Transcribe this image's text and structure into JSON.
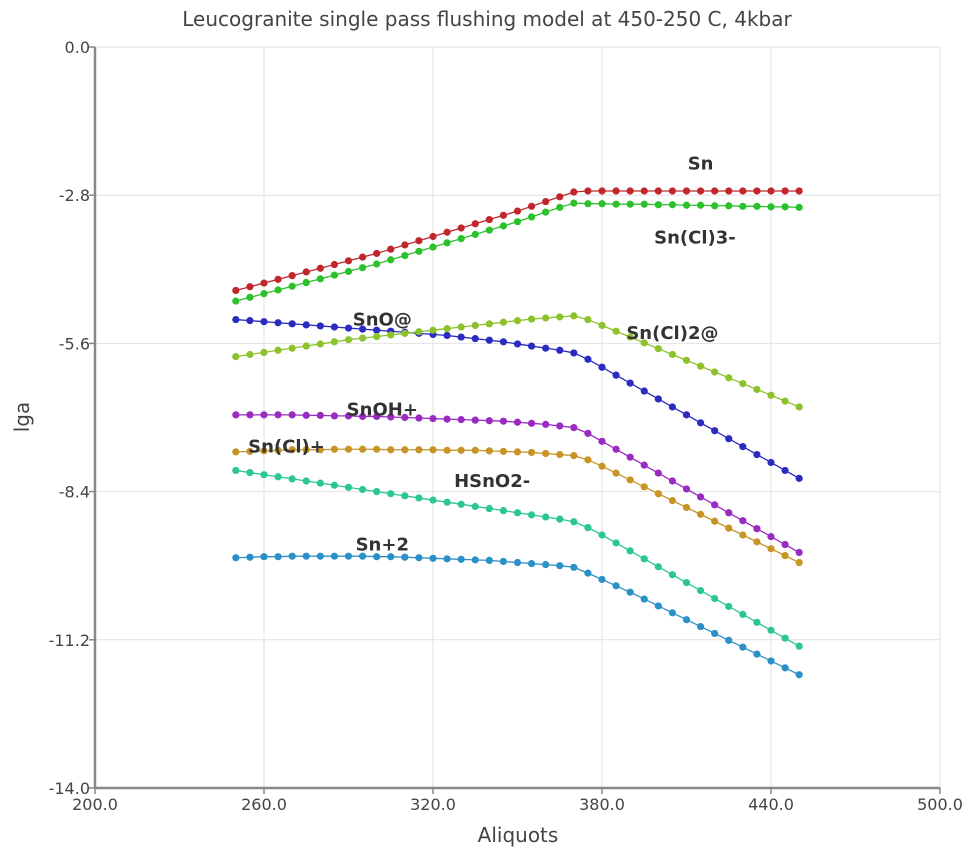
{
  "chart_data": {
    "type": "line",
    "title": "Leucogranite single pass flushing model at 450-250 C, 4kbar",
    "xlabel": "Aliquots",
    "ylabel": "lga",
    "xlim": [
      200,
      500
    ],
    "ylim": [
      -14,
      0
    ],
    "xticks": [
      "200.0",
      "260.0",
      "320.0",
      "380.0",
      "440.0",
      "500.0"
    ],
    "yticks": [
      "0.0",
      "-2.8",
      "-5.6",
      "-8.4",
      "-11.2",
      "-14.0"
    ],
    "grid": true,
    "x": [
      250,
      255,
      260,
      265,
      270,
      275,
      280,
      285,
      290,
      295,
      300,
      305,
      310,
      315,
      320,
      325,
      330,
      335,
      340,
      345,
      350,
      355,
      360,
      365,
      370,
      375,
      380,
      385,
      390,
      395,
      400,
      405,
      410,
      415,
      420,
      425,
      430,
      435,
      440,
      445,
      450
    ],
    "series": [
      {
        "name": "Sn",
        "color": "#c0272d",
        "label_pos": [
          415,
          -2.2
        ],
        "values": [
          -4.6,
          -4.53,
          -4.46,
          -4.39,
          -4.32,
          -4.25,
          -4.18,
          -4.11,
          -4.04,
          -3.97,
          -3.9,
          -3.82,
          -3.74,
          -3.66,
          -3.58,
          -3.5,
          -3.42,
          -3.34,
          -3.26,
          -3.18,
          -3.1,
          -3.01,
          -2.92,
          -2.83,
          -2.74,
          -2.72,
          -2.72,
          -2.72,
          -2.72,
          -2.72,
          -2.72,
          -2.72,
          -2.72,
          -2.72,
          -2.72,
          -2.72,
          -2.72,
          -2.72,
          -2.72,
          -2.72,
          -2.72
        ]
      },
      {
        "name": "Sn(Cl)3-",
        "color": "#2bc12b",
        "label_pos": [
          413,
          -3.6
        ],
        "values": [
          -4.8,
          -4.73,
          -4.66,
          -4.59,
          -4.52,
          -4.45,
          -4.38,
          -4.31,
          -4.24,
          -4.17,
          -4.1,
          -4.02,
          -3.94,
          -3.86,
          -3.78,
          -3.7,
          -3.62,
          -3.54,
          -3.46,
          -3.38,
          -3.3,
          -3.21,
          -3.12,
          -3.03,
          -2.95,
          -2.96,
          -2.96,
          -2.97,
          -2.97,
          -2.97,
          -2.98,
          -2.98,
          -2.99,
          -2.99,
          -3.0,
          -3.0,
          -3.01,
          -3.01,
          -3.02,
          -3.02,
          -3.03
        ]
      },
      {
        "name": "SnO@",
        "color": "#2b2bc0",
        "label_pos": [
          302,
          -5.15
        ],
        "values": [
          -5.15,
          -5.17,
          -5.19,
          -5.21,
          -5.23,
          -5.25,
          -5.27,
          -5.29,
          -5.31,
          -5.33,
          -5.35,
          -5.37,
          -5.39,
          -5.41,
          -5.43,
          -5.45,
          -5.48,
          -5.51,
          -5.54,
          -5.57,
          -5.61,
          -5.65,
          -5.69,
          -5.73,
          -5.78,
          -5.9,
          -6.05,
          -6.2,
          -6.35,
          -6.5,
          -6.65,
          -6.8,
          -6.95,
          -7.1,
          -7.25,
          -7.4,
          -7.55,
          -7.7,
          -7.85,
          -8.0,
          -8.15
        ]
      },
      {
        "name": "Sn(Cl)2@",
        "color": "#8cc22b",
        "label_pos": [
          405,
          -5.4
        ],
        "values": [
          -5.85,
          -5.81,
          -5.77,
          -5.73,
          -5.69,
          -5.65,
          -5.61,
          -5.57,
          -5.53,
          -5.5,
          -5.47,
          -5.44,
          -5.41,
          -5.38,
          -5.35,
          -5.32,
          -5.29,
          -5.26,
          -5.23,
          -5.2,
          -5.17,
          -5.14,
          -5.12,
          -5.1,
          -5.08,
          -5.15,
          -5.26,
          -5.37,
          -5.48,
          -5.59,
          -5.7,
          -5.81,
          -5.92,
          -6.03,
          -6.14,
          -6.25,
          -6.36,
          -6.47,
          -6.58,
          -6.69,
          -6.8
        ]
      },
      {
        "name": "SnOH+",
        "color": "#9a2bc0",
        "label_pos": [
          302,
          -6.85
        ],
        "values": [
          -6.95,
          -6.95,
          -6.95,
          -6.95,
          -6.95,
          -6.96,
          -6.96,
          -6.97,
          -6.97,
          -6.98,
          -6.98,
          -6.99,
          -7.0,
          -7.01,
          -7.02,
          -7.03,
          -7.04,
          -7.05,
          -7.06,
          -7.07,
          -7.09,
          -7.11,
          -7.13,
          -7.16,
          -7.19,
          -7.3,
          -7.45,
          -7.6,
          -7.75,
          -7.9,
          -8.05,
          -8.2,
          -8.35,
          -8.5,
          -8.65,
          -8.8,
          -8.95,
          -9.1,
          -9.25,
          -9.4,
          -9.55
        ]
      },
      {
        "name": "Sn(Cl)+",
        "color": "#c79428",
        "label_pos": [
          268,
          -7.55
        ],
        "values": [
          -7.65,
          -7.64,
          -7.63,
          -7.62,
          -7.61,
          -7.61,
          -7.61,
          -7.6,
          -7.6,
          -7.6,
          -7.6,
          -7.61,
          -7.61,
          -7.61,
          -7.61,
          -7.62,
          -7.62,
          -7.62,
          -7.63,
          -7.64,
          -7.65,
          -7.66,
          -7.68,
          -7.7,
          -7.72,
          -7.8,
          -7.92,
          -8.05,
          -8.18,
          -8.31,
          -8.44,
          -8.57,
          -8.7,
          -8.83,
          -8.96,
          -9.09,
          -9.22,
          -9.35,
          -9.48,
          -9.61,
          -9.74
        ]
      },
      {
        "name": "HSnO2-",
        "color": "#2bc596",
        "label_pos": [
          341,
          -8.2
        ],
        "values": [
          -8.0,
          -8.04,
          -8.08,
          -8.12,
          -8.16,
          -8.2,
          -8.24,
          -8.28,
          -8.32,
          -8.36,
          -8.4,
          -8.44,
          -8.48,
          -8.52,
          -8.56,
          -8.6,
          -8.64,
          -8.68,
          -8.72,
          -8.76,
          -8.8,
          -8.84,
          -8.88,
          -8.92,
          -8.97,
          -9.08,
          -9.22,
          -9.37,
          -9.52,
          -9.67,
          -9.82,
          -9.97,
          -10.12,
          -10.27,
          -10.42,
          -10.57,
          -10.72,
          -10.87,
          -11.02,
          -11.17,
          -11.32
        ]
      },
      {
        "name": "Sn+2",
        "color": "#2b90c8",
        "label_pos": [
          302,
          -9.4
        ],
        "values": [
          -9.65,
          -9.64,
          -9.63,
          -9.63,
          -9.62,
          -9.62,
          -9.62,
          -9.62,
          -9.62,
          -9.62,
          -9.63,
          -9.63,
          -9.64,
          -9.65,
          -9.66,
          -9.67,
          -9.68,
          -9.69,
          -9.7,
          -9.72,
          -9.74,
          -9.76,
          -9.78,
          -9.8,
          -9.83,
          -9.94,
          -10.06,
          -10.18,
          -10.3,
          -10.43,
          -10.56,
          -10.69,
          -10.82,
          -10.95,
          -11.08,
          -11.21,
          -11.34,
          -11.47,
          -11.6,
          -11.73,
          -11.86
        ]
      }
    ]
  }
}
